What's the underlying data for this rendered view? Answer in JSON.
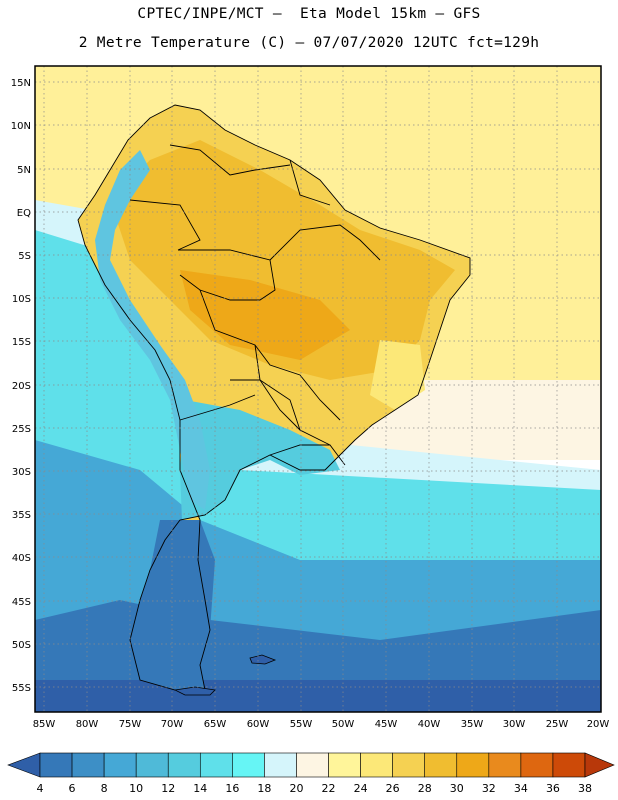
{
  "header": {
    "line1": "CPTEC/INPE/MCT –  Eta Model 15km – GFS",
    "line2": "2 Metre Temperature (C) – 07/07/2020 12UTC fct=129h"
  },
  "axes": {
    "lat_labels": [
      "15N",
      "10N",
      "5N",
      "EQ",
      "5S",
      "10S",
      "15S",
      "20S",
      "25S",
      "30S",
      "35S",
      "40S",
      "45S",
      "50S",
      "55S"
    ],
    "lon_labels": [
      "85W",
      "80W",
      "75W",
      "70W",
      "65W",
      "60W",
      "55W",
      "50W",
      "45W",
      "40W",
      "35W",
      "30W",
      "25W",
      "20W"
    ]
  },
  "colorbar": {
    "ticks": [
      "4",
      "6",
      "8",
      "10",
      "12",
      "14",
      "16",
      "18",
      "20",
      "22",
      "24",
      "26",
      "28",
      "30",
      "32",
      "34",
      "36",
      "38"
    ],
    "colors": [
      "#2f5fa8",
      "#3578b8",
      "#3d8fc6",
      "#45a8d6",
      "#4fbad8",
      "#55ccde",
      "#5fe0ea",
      "#66f5f5",
      "#d5f5fb",
      "#fdf5e3",
      "#fff59a",
      "#fce878",
      "#f5d152",
      "#f0bd30",
      "#eea818",
      "#e98a1d",
      "#de6710",
      "#cd4a08",
      "#b8380a"
    ]
  },
  "map_fill": {
    "ocean_north": "#fff099",
    "ocean_pale": "#fdf5e3",
    "ocean_cyan": "#5fe0ea",
    "ocean_mid": "#45a8d6",
    "ocean_deep": "#3578b8",
    "land_hot": "#f0bd30",
    "land_warm": "#f5d152",
    "land_cool": "#55ccde",
    "land_cold": "#3578b8",
    "andes": "#5fc5e0"
  }
}
